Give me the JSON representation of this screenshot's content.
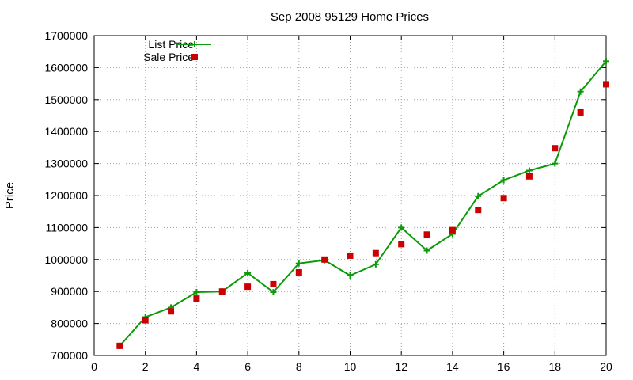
{
  "chart_data": {
    "type": "line",
    "title": "Sep 2008 95129 Home Prices",
    "xlabel": "",
    "ylabel": "Price",
    "xlim": [
      0,
      20
    ],
    "ylim": [
      700000,
      1700000
    ],
    "x_ticks": [
      0,
      2,
      4,
      6,
      8,
      10,
      12,
      14,
      16,
      18,
      20
    ],
    "y_ticks": [
      700000,
      800000,
      900000,
      1000000,
      1100000,
      1200000,
      1300000,
      1400000,
      1500000,
      1600000,
      1700000
    ],
    "grid": true,
    "legend_position": "top-left",
    "series": [
      {
        "name": "List Price",
        "style": "line-with-plus-markers",
        "color": "#0a9a0a",
        "x": [
          1,
          2,
          3,
          4,
          5,
          6,
          7,
          8,
          9,
          10,
          11,
          12,
          13,
          14,
          15,
          16,
          17,
          18,
          19,
          20
        ],
        "values": [
          730000,
          820000,
          850000,
          898000,
          900000,
          958000,
          898000,
          988000,
          998000,
          950000,
          985000,
          1100000,
          1028000,
          1080000,
          1198000,
          1248000,
          1278000,
          1300000,
          1525000,
          1620000
        ]
      },
      {
        "name": "Sale Price",
        "style": "square-markers",
        "color": "#cc0000",
        "x": [
          1,
          2,
          3,
          4,
          5,
          6,
          7,
          8,
          9,
          10,
          11,
          12,
          13,
          14,
          15,
          16,
          17,
          18,
          19,
          20
        ],
        "values": [
          730000,
          810000,
          838000,
          878000,
          900000,
          915000,
          923000,
          960000,
          1000000,
          1012000,
          1020000,
          1048000,
          1078000,
          1092000,
          1155000,
          1192000,
          1260000,
          1348000,
          1460000,
          1548000
        ]
      }
    ]
  }
}
